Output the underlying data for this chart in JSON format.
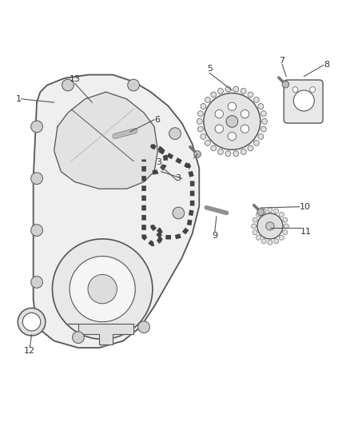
{
  "background_color": "#ffffff",
  "figure_width": 4.38,
  "figure_height": 5.33,
  "dpi": 100,
  "line_color": "#555555",
  "text_color": "#333333"
}
